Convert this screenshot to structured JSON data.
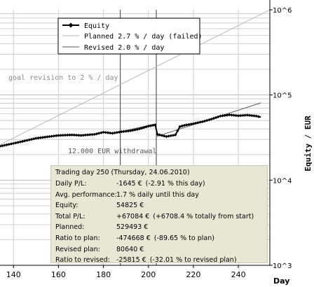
{
  "chart_data": {
    "type": "line",
    "y_scale": "log",
    "xlabel": "Day",
    "ylabel": "Equity / EUR",
    "xlim": [
      134,
      254
    ],
    "ylim": [
      1000,
      1000000
    ],
    "x_ticks": [
      "140",
      "160",
      "180",
      "200",
      "220",
      "240"
    ],
    "y_ticks": [
      "10^3",
      "10^4",
      "10^5",
      "10^6"
    ],
    "grid": true,
    "legend_position": "top-left",
    "legend": [
      "Equity",
      "Planned 2.7 % / day (failed)",
      "Revised 2.0 % / day"
    ],
    "series": [
      {
        "name": "Equity",
        "x": [
          134,
          140,
          144,
          150,
          156,
          160,
          166,
          170,
          176,
          180,
          184,
          188,
          192,
          196,
          200,
          203,
          204,
          208,
          212,
          214,
          216,
          220,
          224,
          228,
          232,
          236,
          240,
          244,
          248,
          250
        ],
        "y": [
          25000,
          27000,
          28500,
          31000,
          32500,
          33500,
          34000,
          33500,
          34500,
          36500,
          35500,
          37000,
          38000,
          40000,
          43000,
          44500,
          34500,
          32500,
          34000,
          42500,
          44000,
          46000,
          48500,
          52000,
          56500,
          58500,
          57000,
          58000,
          56500,
          54825
        ]
      },
      {
        "name": "Planned 2.7 % / day (failed)",
        "x": [
          134,
          254
        ],
        "y": [
          26000,
          1000000
        ]
      },
      {
        "name": "Revised 2.0 % / day",
        "x": [
          187.5,
          203.5,
          203.5,
          250
        ],
        "y": [
          37000,
          46000,
          32500,
          80640
        ]
      }
    ],
    "vertical_markers": [
      187.5,
      203.5
    ],
    "annotations": [
      {
        "text": "goal revision to 2 % / day",
        "x": 134,
        "y": 122000
      },
      {
        "text": "12.000 EUR withdrawal",
        "x": 162,
        "y": 26500
      }
    ],
    "colors": {
      "equity": "#000000",
      "planned": "#b8b8b8",
      "revised": "#5a5a5a",
      "grid": "#cfcfcf",
      "info_box": "#e8e7d5"
    }
  },
  "info": {
    "title": "Trading day 250 (Thursday, 24.06.2010)",
    "rows": [
      {
        "label": "Daily P/L:",
        "value": "-1645 €",
        "extra": "(-2.91 % this day)"
      },
      {
        "label": "Avg. performance:",
        "value": "1.7 % daily until this day",
        "extra": ""
      },
      {
        "label": "Equity:",
        "value": "54825 €",
        "extra": ""
      },
      {
        "label": "Total P/L:",
        "value": "+67084 €",
        "extra": "(+6708.4 % totally from start)"
      },
      {
        "label": "Planned:",
        "value": "529493 €",
        "extra": ""
      },
      {
        "label": "Ratio to plan:",
        "value": "-474668 €",
        "extra": "(-89.65 % to plan)"
      },
      {
        "label": "Revised plan:",
        "value": "80640 €",
        "extra": ""
      },
      {
        "label": "Ratio to revised:",
        "value": "-25815 €",
        "extra": "(-32.01 % to revised plan)"
      }
    ]
  }
}
